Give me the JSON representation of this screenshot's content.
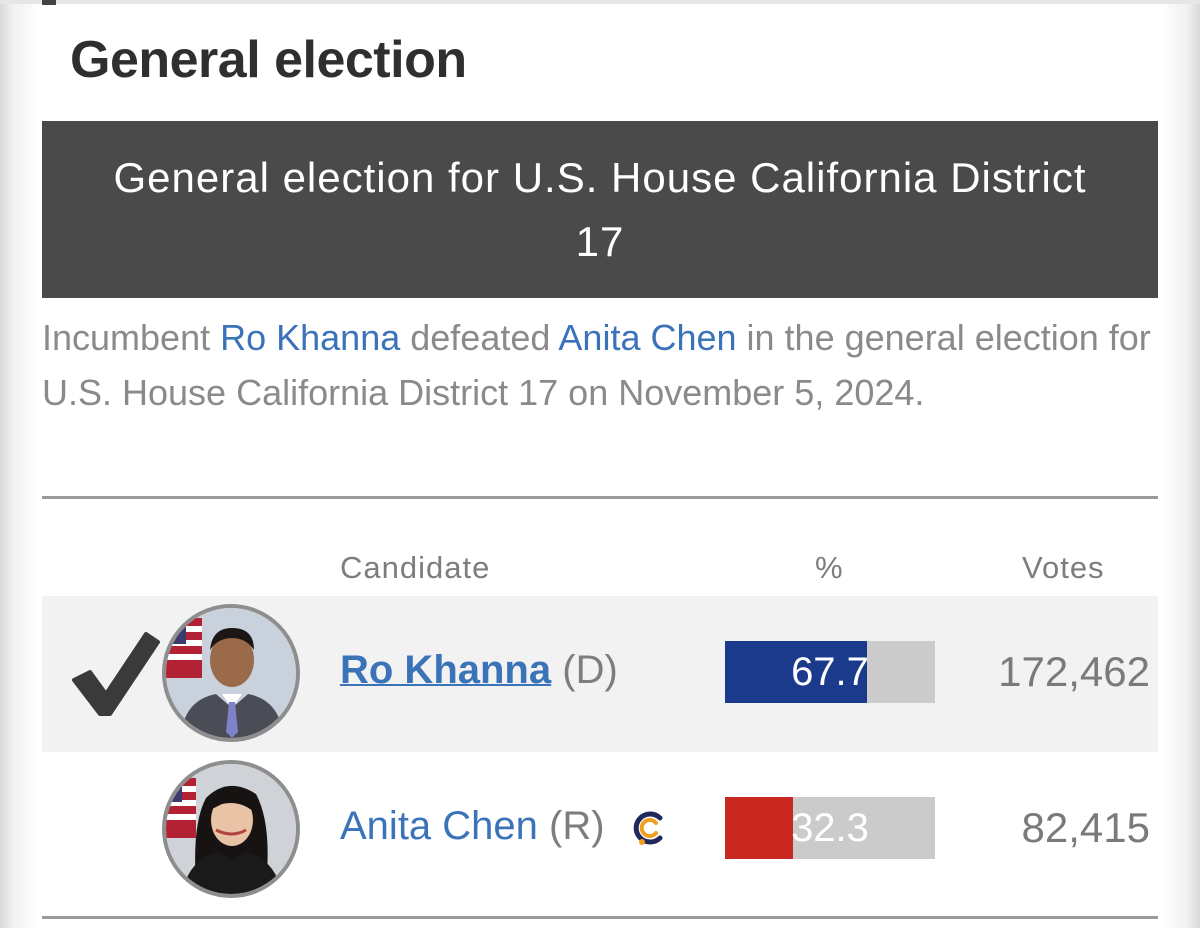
{
  "section_title": "General election",
  "race_title": "General election for U.S. House California District 17",
  "summary": {
    "prefix": "Incumbent ",
    "winner": "Ro Khanna",
    "middle": " defeated ",
    "loser": "Anita Chen",
    "suffix": " in the general election for U.S. House California District 17 on November 5, 2024."
  },
  "table": {
    "headers": {
      "candidate": "Candidate",
      "percent": "%",
      "votes": "Votes"
    },
    "rows": [
      {
        "name": "Ro Khanna",
        "party": "(D)",
        "percent": "67.7",
        "percent_value": 67.7,
        "votes": "172,462",
        "winner": true,
        "bar_color": "#1b3a8c",
        "icon": "checkmark-icon"
      },
      {
        "name": "Anita Chen",
        "party": "(R)",
        "percent": "32.3",
        "percent_value": 32.3,
        "votes": "82,415",
        "winner": false,
        "bar_color": "#c8281f",
        "icon": "cpac-endorsement-icon"
      }
    ]
  },
  "colors": {
    "banner_bg": "#4a4a4a",
    "link": "#3b73b9",
    "bar_track": "#cbcbcb"
  }
}
